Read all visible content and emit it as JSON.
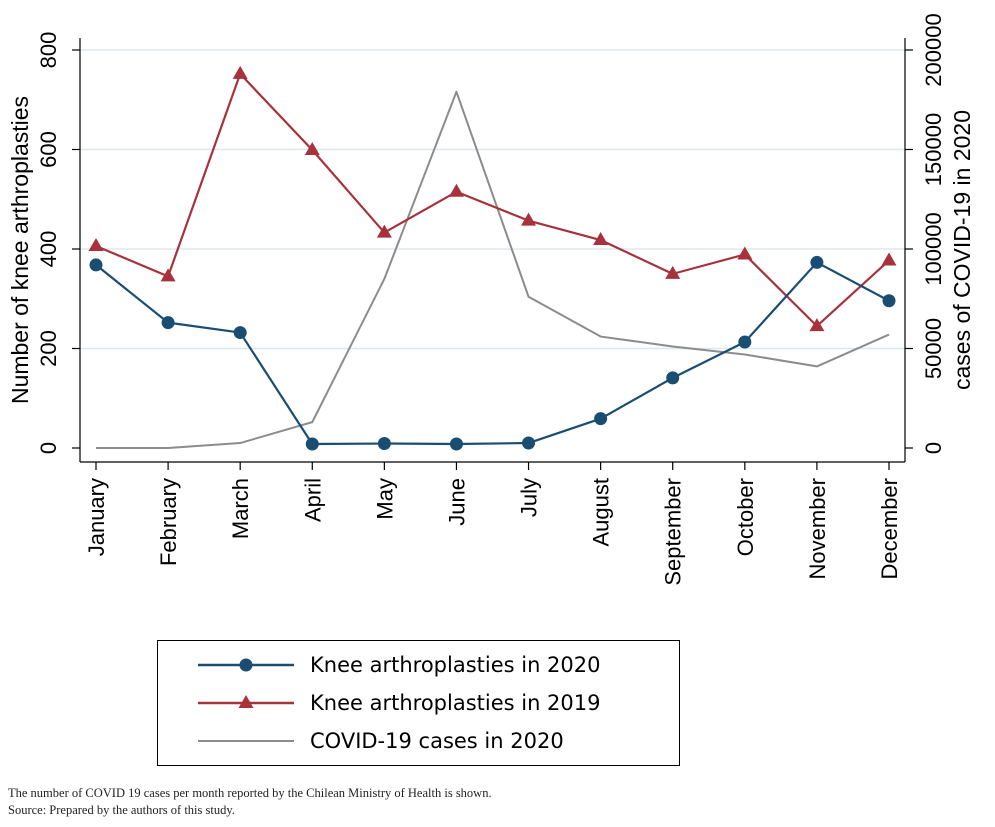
{
  "colors": {
    "knee2020": "#1a4d72",
    "knee2019": "#a8323c",
    "covid": "#8c8c8c",
    "grid": "#dde8ee"
  },
  "chart_data": {
    "type": "line",
    "categories": [
      "January",
      "February",
      "March",
      "April",
      "May",
      "June",
      "July",
      "August",
      "September",
      "October",
      "November",
      "December"
    ],
    "ylabel_left": "Number of knee arthroplasties",
    "ylabel_right": "cases of COVID-19 in 2020",
    "ylim_left": [
      0,
      800
    ],
    "ylim_right": [
      0,
      200000
    ],
    "yticks_left": [
      "0",
      "200",
      "400",
      "600",
      "800"
    ],
    "yticks_right": [
      "0",
      "50000",
      "100000",
      "150000",
      "200000"
    ],
    "grid": true,
    "series": [
      {
        "name": "Knee arthroplasties in 2020",
        "axis": "left",
        "marker": "circle",
        "values": [
          368,
          252,
          232,
          8,
          9,
          8,
          10,
          59,
          141,
          213,
          373,
          296
        ]
      },
      {
        "name": "Knee arthroplasties in 2019",
        "axis": "left",
        "marker": "triangle",
        "values": [
          406,
          345,
          752,
          599,
          433,
          515,
          457,
          418,
          350,
          389,
          245,
          377
        ]
      },
      {
        "name": "COVID-19 cases in 2020",
        "axis": "right",
        "marker": "none",
        "values": [
          0,
          0,
          2500,
          13000,
          85000,
          179000,
          76000,
          56000,
          51000,
          47000,
          41000,
          57000
        ]
      }
    ]
  },
  "footnotes": {
    "line1": "The number of COVID 19 cases per month reported by the Chilean Ministry of Health is shown.",
    "line2": "Source: Prepared by the authors of this study."
  }
}
